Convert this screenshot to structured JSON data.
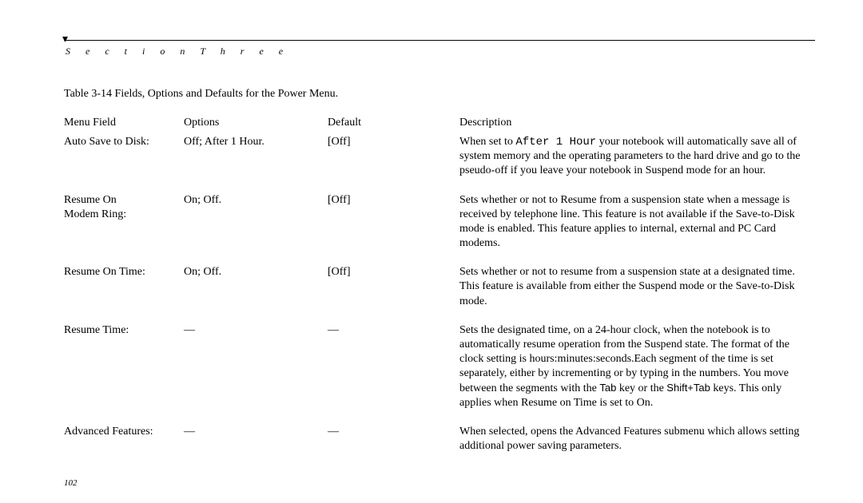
{
  "page": {
    "section_label": "S e c t i o n   T h r e e",
    "caption": "Table 3-14 Fields, Options and Defaults for the Power Menu.",
    "page_number": "102"
  },
  "table": {
    "headers": {
      "menu_field": "Menu Field",
      "options": "Options",
      "default": "Default",
      "description": "Description"
    },
    "rows": [
      {
        "menu": "Auto Save to Disk:",
        "options": "Off; After 1 Hour.",
        "default": "[Off]",
        "desc": {
          "pre": "When set to ",
          "mono1": "After 1 Hour",
          "post": " your notebook will automatically save all of system memory and the operating parameters to the hard drive and go to the pseudo-off if you leave your notebook in Suspend mode for an hour."
        }
      },
      {
        "menu": "Resume On\nModem Ring:",
        "options": "On; Off.",
        "default": "[Off]",
        "desc": {
          "plain": "Sets whether or not to Resume from a suspension state when a message is received by telephone line. This feature is not available if the Save-to-Disk mode is enabled. This feature applies to internal, external and PC Card modems."
        }
      },
      {
        "menu": "Resume On Time:",
        "options": "On; Off.",
        "default": "[Off]",
        "desc": {
          "plain": "Sets whether or not to resume from a suspension state at a designated time. This feature is available from either the Suspend mode or the Save-to-Disk mode."
        }
      },
      {
        "menu": "Resume Time:",
        "options": "—",
        "default": "—",
        "desc": {
          "p1": "Sets the designated time, on a 24-hour clock, when the notebook is to automatically resume operation from the Suspend state. The format of the clock setting is hours:minutes:seconds.Each segment of the time is set separately, either by incrementing or by typing in the numbers. You move between the segments with the ",
          "sans1": "Tab",
          "p2": " key or the ",
          "sans2": "Shift+Tab",
          "p3": " keys. This only applies when Resume on Time is set to On."
        }
      },
      {
        "menu": "Advanced Features:",
        "options": "—",
        "default": "—",
        "desc": {
          "plain": "When selected, opens the Advanced Features submenu which allows setting additional power saving parameters."
        }
      }
    ]
  }
}
